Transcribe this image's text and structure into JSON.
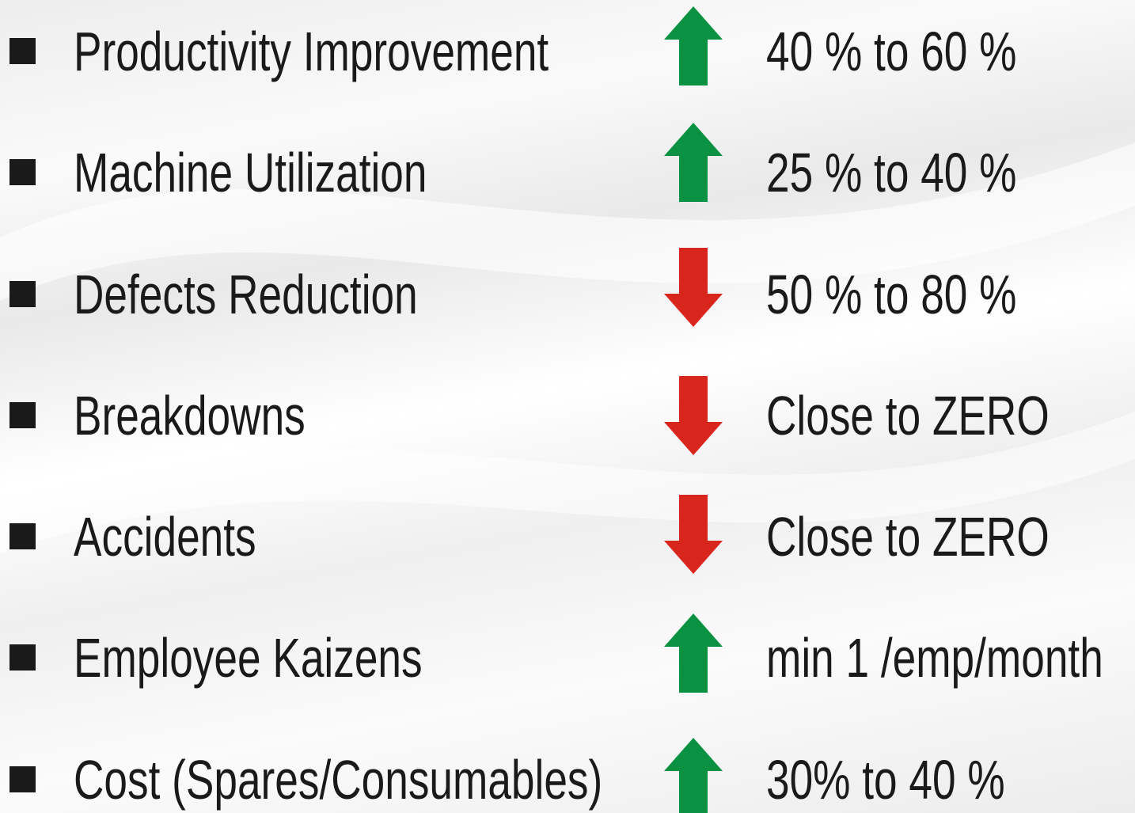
{
  "items": [
    {
      "label": "Productivity Improvement",
      "value": "40 % to 60 %"
    },
    {
      "label": "Machine Utilization",
      "value": "25 % to 40 %"
    },
    {
      "label": "Defects Reduction",
      "value": "50 % to 80 %"
    },
    {
      "label": "Breakdowns",
      "value": "Close to ZERO"
    },
    {
      "label": "Accidents",
      "value": "Close to ZERO"
    },
    {
      "label": "Employee Kaizens",
      "value": "min 1 /emp/month"
    },
    {
      "label": "Cost (Spares/Consumables)",
      "value": "30% to 40 %"
    }
  ]
}
